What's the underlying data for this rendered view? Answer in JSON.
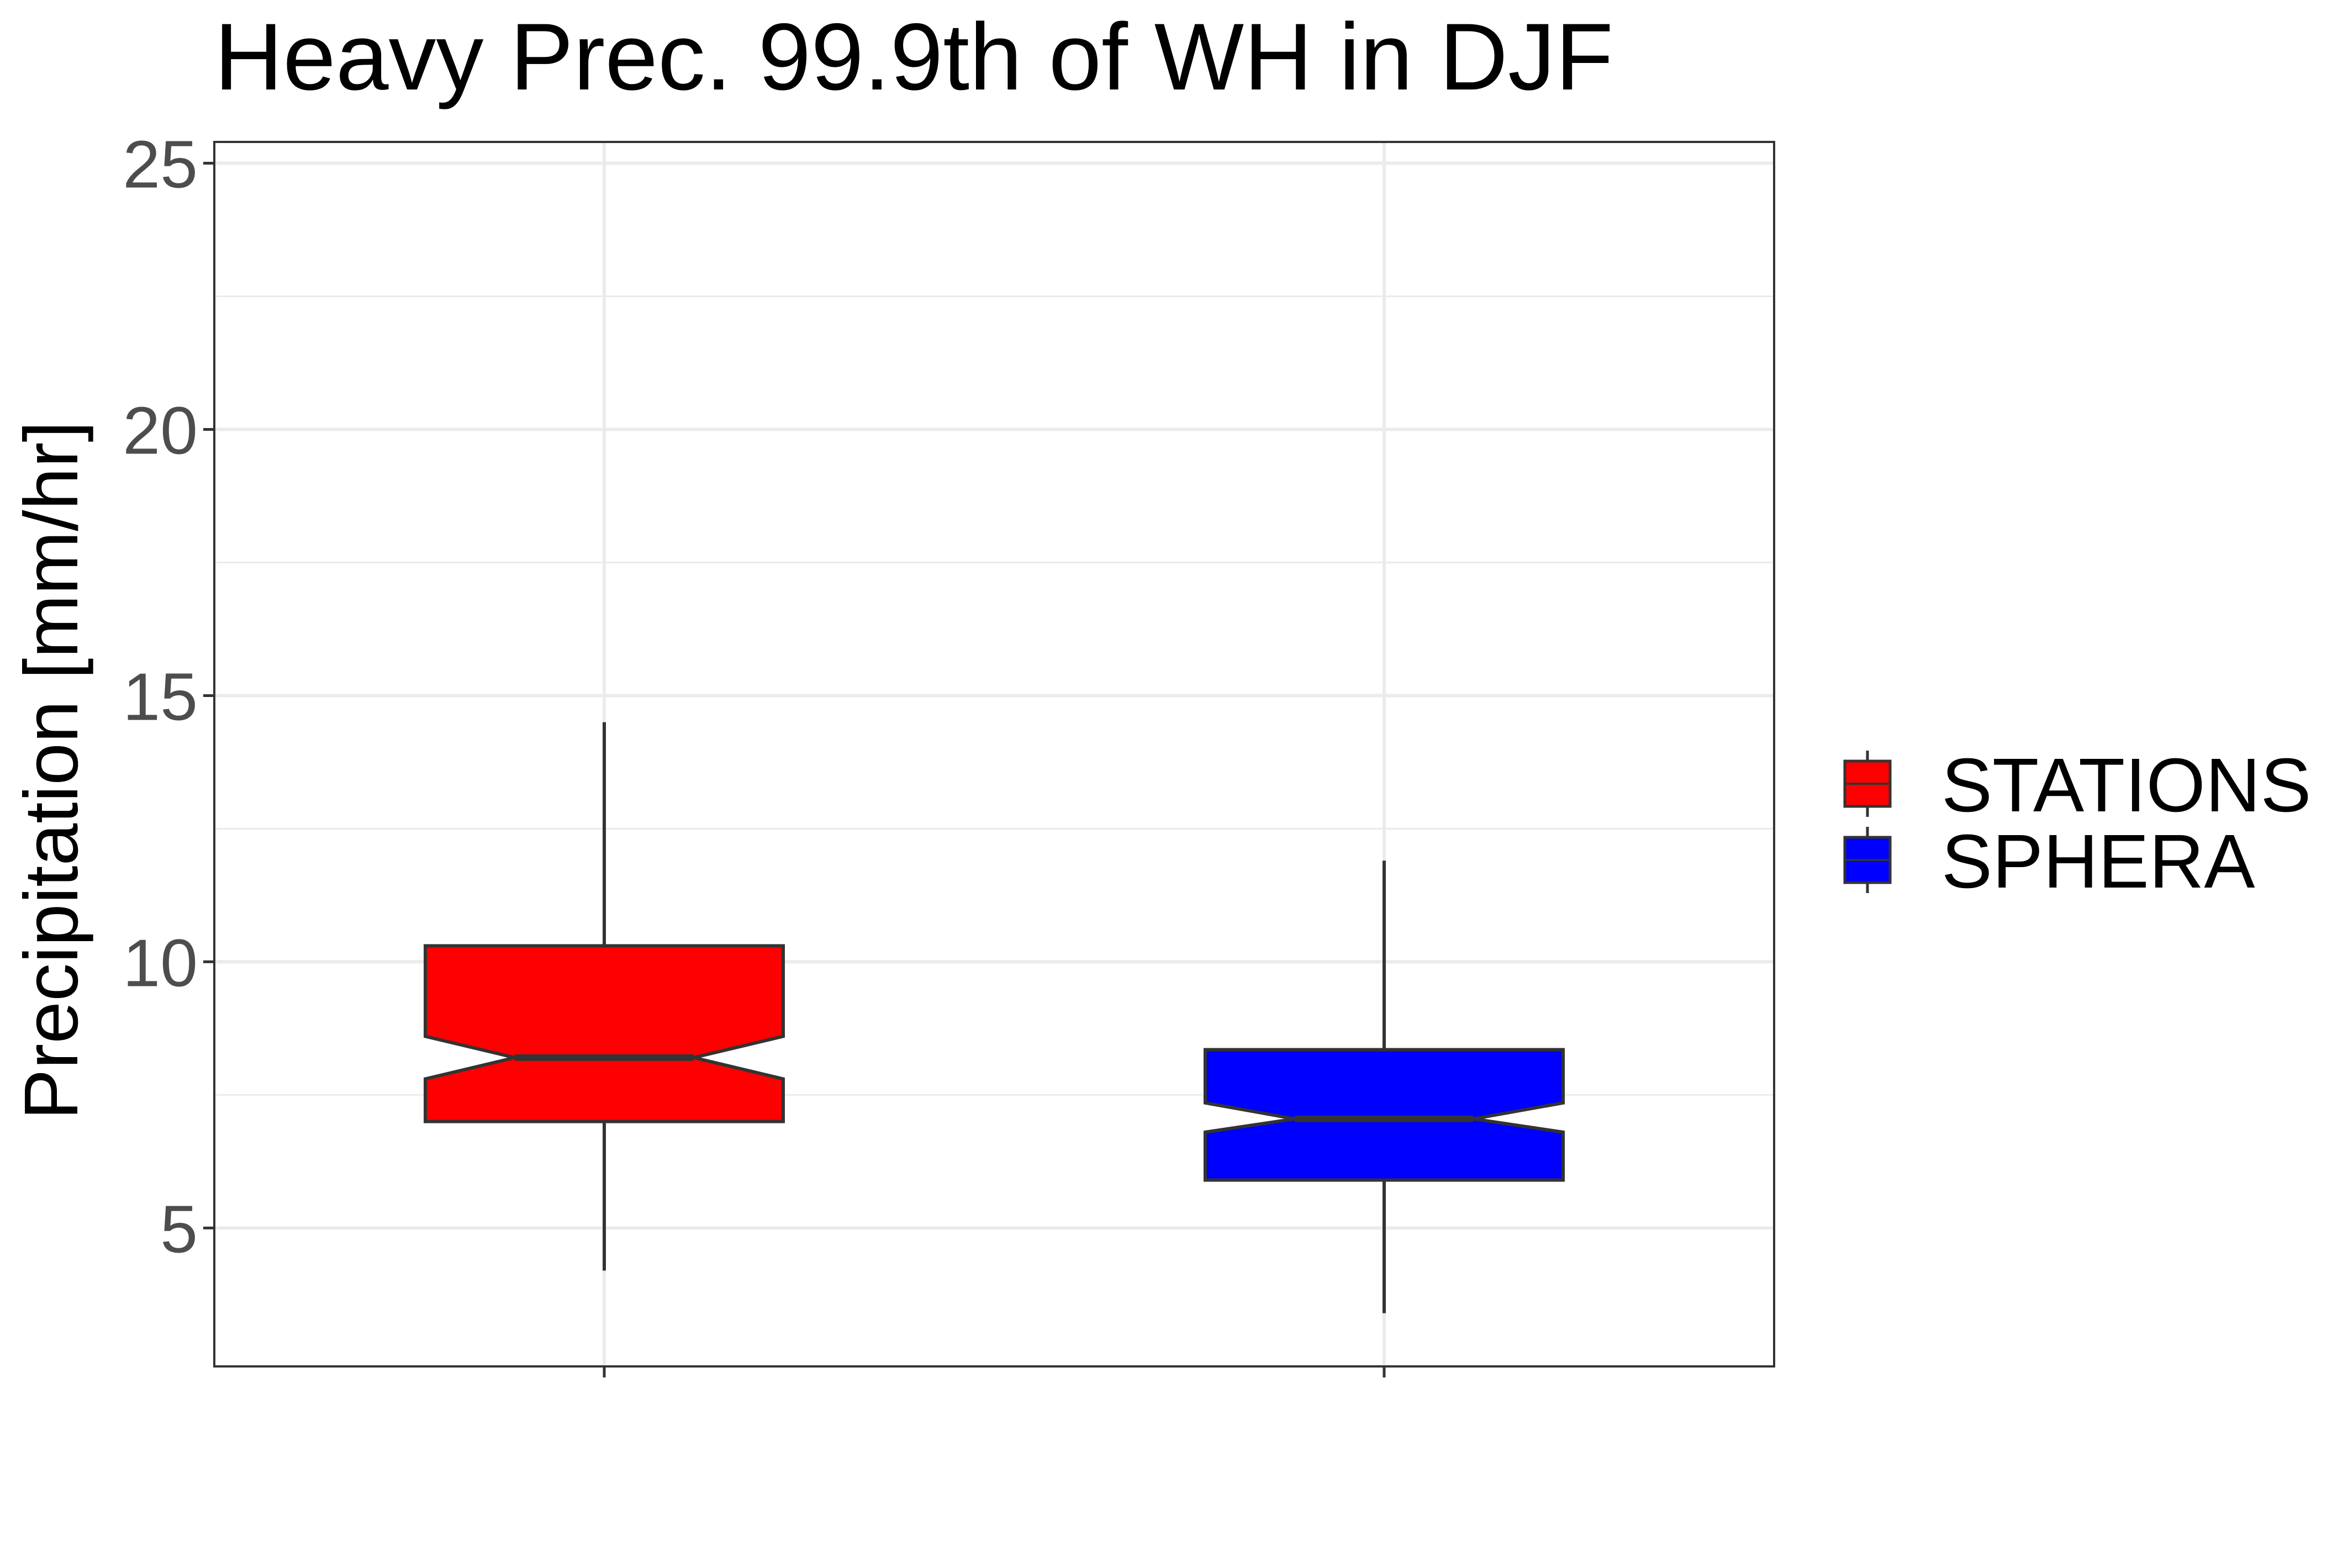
{
  "chart_data": {
    "type": "boxplot",
    "title": "Heavy Prec. 99.9th of WH in DJF",
    "xlabel": "",
    "ylabel": "Precipitation [mm/hr]",
    "ylim": [
      2.4,
      25.4
    ],
    "yticks": [
      5,
      10,
      15,
      20,
      25
    ],
    "minor_gridlines": [
      7.5,
      12.5,
      17.5,
      22.5
    ],
    "notched": true,
    "grid": true,
    "legend": {
      "position": "right"
    },
    "series": [
      {
        "name": "STATIONS",
        "color": "#ff0000",
        "whisker_low": 4.2,
        "q1": 7.0,
        "notch_low": 7.8,
        "median": 8.2,
        "notch_high": 8.6,
        "q3": 10.3,
        "whisker_high": 14.5
      },
      {
        "name": "SPHERA",
        "color": "#0000ff",
        "whisker_low": 3.4,
        "q1": 5.9,
        "notch_low": 6.8,
        "median": 7.05,
        "notch_high": 7.35,
        "q3": 8.35,
        "whisker_high": 11.9
      }
    ]
  }
}
